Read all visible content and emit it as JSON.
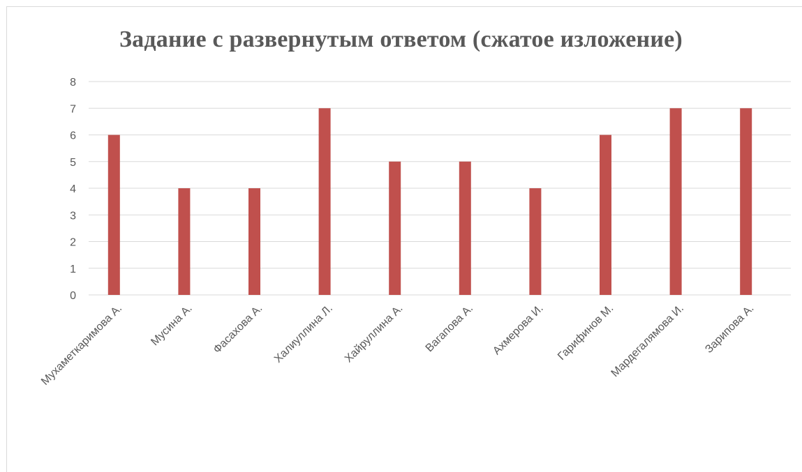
{
  "chart_data": {
    "type": "bar",
    "title": "Задание с развернутым ответом (сжатое изложение)",
    "xlabel": "",
    "ylabel": "",
    "ylim": [
      0,
      8
    ],
    "yticks": [
      "0",
      "1",
      "2",
      "3",
      "4",
      "5",
      "6",
      "7",
      "8"
    ],
    "grid": true,
    "legend": "none",
    "bar_color": "#c0504d",
    "categories": [
      "Мухаметкаримова А.",
      "Мусина А.",
      "Фасахова А.",
      "Халиуллина Л.",
      "Хайруллина А.",
      "Вагапова А.",
      "Ахмерова И.",
      "Гарифинов М.",
      "Мардегалямова И.",
      "Зарипова А."
    ],
    "values": [
      6,
      4,
      4,
      7,
      5,
      5,
      4,
      6,
      7,
      7
    ]
  }
}
